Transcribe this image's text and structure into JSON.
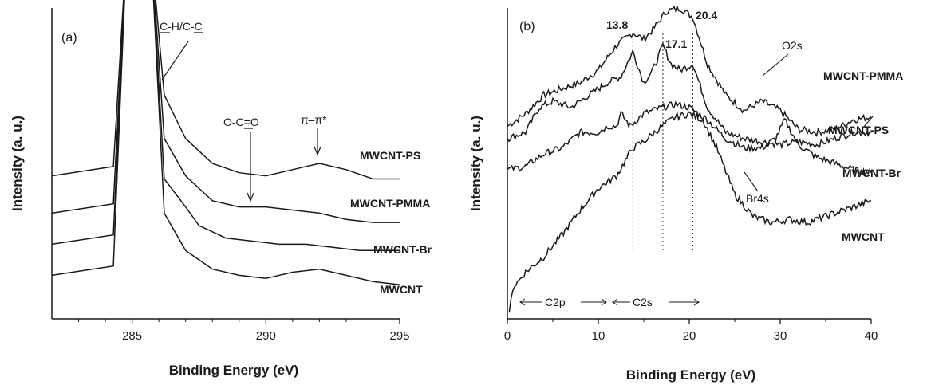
{
  "chart_data": [
    {
      "type": "line",
      "panel_label": "(a)",
      "xlabel": "Binding Energy (eV)",
      "ylabel": "Intensity (a. u.)",
      "xlim": [
        282,
        295
      ],
      "xticks": [
        "285",
        "290",
        "295"
      ],
      "series": [
        {
          "name": "MWCNT-PS",
          "baseline": 0.46,
          "points": [
            [
              282,
              0.46
            ],
            [
              284.3,
              0.49
            ],
            [
              284.8,
              1.2
            ],
            [
              285.7,
              1.2
            ],
            [
              286.2,
              0.72
            ],
            [
              287,
              0.58
            ],
            [
              288,
              0.5
            ],
            [
              289,
              0.47
            ],
            [
              290,
              0.46
            ],
            [
              291,
              0.48
            ],
            [
              292,
              0.5
            ],
            [
              293,
              0.48
            ],
            [
              294,
              0.45
            ],
            [
              295,
              0.45
            ]
          ]
        },
        {
          "name": "MWCNT-PMMA",
          "baseline": 0.34,
          "points": [
            [
              282,
              0.34
            ],
            [
              284.3,
              0.37
            ],
            [
              284.8,
              1.2
            ],
            [
              285.7,
              1.2
            ],
            [
              286.2,
              0.58
            ],
            [
              287,
              0.46
            ],
            [
              288,
              0.38
            ],
            [
              289,
              0.36
            ],
            [
              290,
              0.36
            ],
            [
              291,
              0.35
            ],
            [
              292,
              0.34
            ],
            [
              293,
              0.32
            ],
            [
              294,
              0.31
            ],
            [
              295,
              0.31
            ]
          ]
        },
        {
          "name": "MWCNT-Br",
          "baseline": 0.24,
          "points": [
            [
              282,
              0.24
            ],
            [
              284.3,
              0.27
            ],
            [
              284.8,
              1.2
            ],
            [
              285.7,
              1.2
            ],
            [
              286.2,
              0.45
            ],
            [
              287,
              0.36
            ],
            [
              287.5,
              0.3
            ],
            [
              288.5,
              0.26
            ],
            [
              289.5,
              0.25
            ],
            [
              290.5,
              0.24
            ],
            [
              291.5,
              0.24
            ],
            [
              292.5,
              0.23
            ],
            [
              293.5,
              0.22
            ],
            [
              295,
              0.22
            ]
          ]
        },
        {
          "name": "MWCNT",
          "baseline": 0.15,
          "points": [
            [
              282,
              0.14
            ],
            [
              284.3,
              0.17
            ],
            [
              284.8,
              1.2
            ],
            [
              285.7,
              1.2
            ],
            [
              286.2,
              0.34
            ],
            [
              287,
              0.22
            ],
            [
              288,
              0.16
            ],
            [
              289,
              0.14
            ],
            [
              290,
              0.13
            ],
            [
              291,
              0.15
            ],
            [
              292,
              0.16
            ],
            [
              293,
              0.14
            ],
            [
              294,
              0.12
            ],
            [
              295,
              0.11
            ]
          ]
        }
      ],
      "annotations": [
        "C-H/C-C",
        "O-C=O",
        "π–π*"
      ]
    },
    {
      "type": "line",
      "panel_label": "(b)",
      "xlabel": "Binding Energy (eV)",
      "ylabel": "Intensity (a. u.)",
      "xlim": [
        0,
        40
      ],
      "xticks": [
        "0",
        "10",
        "20",
        "30",
        "40"
      ],
      "markers": [
        "13.8",
        "17.1",
        "20.4"
      ],
      "marker_positions": [
        13.8,
        17.1,
        20.4
      ],
      "series": [
        {
          "name": "MWCNT-PMMA",
          "points": [
            [
              0,
              0.62
            ],
            [
              2,
              0.66
            ],
            [
              4,
              0.72
            ],
            [
              6,
              0.74
            ],
            [
              8,
              0.76
            ],
            [
              10,
              0.8
            ],
            [
              12,
              0.88
            ],
            [
              13.8,
              0.92
            ],
            [
              15,
              0.9
            ],
            [
              16,
              0.93
            ],
            [
              17.5,
              0.99
            ],
            [
              19,
              1.0
            ],
            [
              20.4,
              0.97
            ],
            [
              22,
              0.82
            ],
            [
              24,
              0.72
            ],
            [
              26,
              0.67
            ],
            [
              28,
              0.7
            ],
            [
              30,
              0.67
            ],
            [
              32,
              0.61
            ],
            [
              34,
              0.6
            ],
            [
              36,
              0.61
            ],
            [
              38,
              0.64
            ],
            [
              40,
              0.65
            ]
          ]
        },
        {
          "name": "MWCNT-PS",
          "points": [
            [
              0,
              0.58
            ],
            [
              2,
              0.6
            ],
            [
              3.5,
              0.68
            ],
            [
              5,
              0.7
            ],
            [
              7,
              0.68
            ],
            [
              9,
              0.72
            ],
            [
              11,
              0.76
            ],
            [
              12.5,
              0.78
            ],
            [
              13.8,
              0.86
            ],
            [
              15,
              0.76
            ],
            [
              16,
              0.8
            ],
            [
              17.1,
              0.88
            ],
            [
              18,
              0.82
            ],
            [
              19,
              0.8
            ],
            [
              20.4,
              0.82
            ],
            [
              22,
              0.68
            ],
            [
              24,
              0.6
            ],
            [
              26,
              0.58
            ],
            [
              28,
              0.57
            ],
            [
              30,
              0.56
            ],
            [
              32,
              0.57
            ],
            [
              34,
              0.56
            ],
            [
              36,
              0.58
            ],
            [
              38,
              0.6
            ],
            [
              40,
              0.6
            ]
          ]
        },
        {
          "name": "MWCNT-Br",
          "points": [
            [
              0,
              0.48
            ],
            [
              2,
              0.49
            ],
            [
              4,
              0.53
            ],
            [
              6,
              0.55
            ],
            [
              8,
              0.6
            ],
            [
              10,
              0.6
            ],
            [
              11,
              0.62
            ],
            [
              12,
              0.62
            ],
            [
              12.5,
              0.66
            ],
            [
              13.5,
              0.62
            ],
            [
              15,
              0.66
            ],
            [
              17,
              0.68
            ],
            [
              18.5,
              0.69
            ],
            [
              20,
              0.68
            ],
            [
              22,
              0.64
            ],
            [
              24,
              0.58
            ],
            [
              26,
              0.55
            ],
            [
              28,
              0.55
            ],
            [
              29.5,
              0.58
            ],
            [
              30.5,
              0.64
            ],
            [
              32,
              0.56
            ],
            [
              34,
              0.52
            ],
            [
              36,
              0.5
            ],
            [
              38,
              0.48
            ],
            [
              40,
              0.47
            ]
          ]
        },
        {
          "name": "MWCNT",
          "points": [
            [
              0.2,
              0.02
            ],
            [
              0.6,
              0.1
            ],
            [
              2,
              0.15
            ],
            [
              4,
              0.2
            ],
            [
              6,
              0.27
            ],
            [
              8,
              0.35
            ],
            [
              10,
              0.42
            ],
            [
              12,
              0.46
            ],
            [
              13.8,
              0.55
            ],
            [
              15,
              0.57
            ],
            [
              17,
              0.62
            ],
            [
              18.5,
              0.65
            ],
            [
              20,
              0.66
            ],
            [
              21.5,
              0.64
            ],
            [
              23,
              0.55
            ],
            [
              25,
              0.4
            ],
            [
              27,
              0.33
            ],
            [
              29,
              0.31
            ],
            [
              31,
              0.32
            ],
            [
              33,
              0.31
            ],
            [
              35,
              0.33
            ],
            [
              37,
              0.35
            ],
            [
              39,
              0.37
            ],
            [
              40,
              0.38
            ]
          ]
        }
      ],
      "annotations": [
        "O2s",
        "Br4s",
        "C2p",
        "C2s"
      ]
    }
  ]
}
